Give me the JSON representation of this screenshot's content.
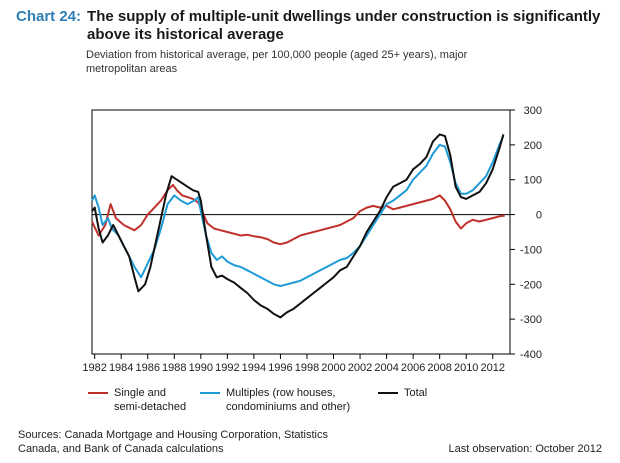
{
  "header": {
    "chart_number": "Chart 24:",
    "title": "The supply of multiple-unit dwellings under construction is significantly above its historical average",
    "subtitle": "Deviation from historical average, per 100,000 people (aged 25+ years), major metropolitan areas"
  },
  "colors": {
    "single": "#c0312b",
    "multiples": "#1f9bd7",
    "total": "#111111",
    "accent": "#2f7fb5"
  },
  "chart_data": {
    "type": "line",
    "x_ticks": [
      "1982",
      "1984",
      "1986",
      "1988",
      "1990",
      "1992",
      "1994",
      "1996",
      "1998",
      "2000",
      "2002",
      "2004",
      "2006",
      "2008",
      "2010",
      "2012"
    ],
    "y_ticks": [
      300,
      200,
      100,
      0,
      -100,
      -200,
      -300,
      -400
    ],
    "xlim": [
      1981.8,
      2013.3
    ],
    "ylim": [
      -400,
      300
    ],
    "y_axis_side": "right",
    "zero_line": true,
    "series": [
      {
        "name": "Single and semi-detached",
        "color": "#c0312b",
        "points": [
          [
            1981.8,
            -20
          ],
          [
            1982.3,
            -60
          ],
          [
            1982.8,
            -30
          ],
          [
            1983.2,
            30
          ],
          [
            1983.6,
            -10
          ],
          [
            1984.2,
            -30
          ],
          [
            1985.0,
            -45
          ],
          [
            1985.5,
            -30
          ],
          [
            1986.0,
            0
          ],
          [
            1986.5,
            20
          ],
          [
            1987.0,
            40
          ],
          [
            1987.5,
            70
          ],
          [
            1987.9,
            85
          ],
          [
            1988.2,
            70
          ],
          [
            1988.6,
            55
          ],
          [
            1989.0,
            50
          ],
          [
            1989.4,
            45
          ],
          [
            1989.8,
            35
          ],
          [
            1990.1,
            10
          ],
          [
            1990.5,
            -25
          ],
          [
            1991.0,
            -40
          ],
          [
            1991.5,
            -45
          ],
          [
            1992.0,
            -50
          ],
          [
            1992.5,
            -55
          ],
          [
            1993.0,
            -60
          ],
          [
            1993.5,
            -58
          ],
          [
            1994.0,
            -62
          ],
          [
            1994.5,
            -65
          ],
          [
            1995.0,
            -70
          ],
          [
            1995.5,
            -80
          ],
          [
            1996.0,
            -85
          ],
          [
            1996.5,
            -80
          ],
          [
            1997.0,
            -70
          ],
          [
            1997.5,
            -60
          ],
          [
            1998.0,
            -55
          ],
          [
            1998.5,
            -50
          ],
          [
            1999.0,
            -45
          ],
          [
            1999.5,
            -40
          ],
          [
            2000.0,
            -35
          ],
          [
            2000.5,
            -30
          ],
          [
            2001.0,
            -20
          ],
          [
            2001.5,
            -10
          ],
          [
            2002.0,
            10
          ],
          [
            2002.5,
            20
          ],
          [
            2003.0,
            25
          ],
          [
            2003.5,
            20
          ],
          [
            2004.0,
            25
          ],
          [
            2004.5,
            15
          ],
          [
            2005.0,
            20
          ],
          [
            2005.5,
            25
          ],
          [
            2006.0,
            30
          ],
          [
            2006.5,
            35
          ],
          [
            2007.0,
            40
          ],
          [
            2007.5,
            45
          ],
          [
            2008.0,
            55
          ],
          [
            2008.4,
            40
          ],
          [
            2008.8,
            15
          ],
          [
            2009.2,
            -20
          ],
          [
            2009.6,
            -40
          ],
          [
            2010.0,
            -25
          ],
          [
            2010.5,
            -15
          ],
          [
            2011.0,
            -20
          ],
          [
            2011.5,
            -15
          ],
          [
            2012.0,
            -10
          ],
          [
            2012.5,
            -5
          ],
          [
            2012.9,
            -3
          ]
        ]
      },
      {
        "name": "Multiples (row houses, condominiums and other)",
        "color": "#1f9bd7",
        "points": [
          [
            1981.8,
            40
          ],
          [
            1982.0,
            55
          ],
          [
            1982.3,
            20
          ],
          [
            1982.6,
            -30
          ],
          [
            1983.0,
            -10
          ],
          [
            1983.3,
            -40
          ],
          [
            1983.8,
            -60
          ],
          [
            1984.2,
            -90
          ],
          [
            1984.6,
            -120
          ],
          [
            1985.0,
            -150
          ],
          [
            1985.5,
            -180
          ],
          [
            1986.0,
            -140
          ],
          [
            1986.5,
            -100
          ],
          [
            1987.0,
            -40
          ],
          [
            1987.5,
            30
          ],
          [
            1988.0,
            55
          ],
          [
            1988.5,
            40
          ],
          [
            1989.0,
            30
          ],
          [
            1989.5,
            40
          ],
          [
            1989.8,
            50
          ],
          [
            1990.0,
            10
          ],
          [
            1990.4,
            -60
          ],
          [
            1990.8,
            -110
          ],
          [
            1991.2,
            -130
          ],
          [
            1991.6,
            -120
          ],
          [
            1992.0,
            -135
          ],
          [
            1992.5,
            -145
          ],
          [
            1993.0,
            -150
          ],
          [
            1993.5,
            -160
          ],
          [
            1994.0,
            -170
          ],
          [
            1994.5,
            -180
          ],
          [
            1995.0,
            -190
          ],
          [
            1995.5,
            -200
          ],
          [
            1996.0,
            -205
          ],
          [
            1996.5,
            -200
          ],
          [
            1997.0,
            -195
          ],
          [
            1997.5,
            -190
          ],
          [
            1998.0,
            -180
          ],
          [
            1998.5,
            -170
          ],
          [
            1999.0,
            -160
          ],
          [
            1999.5,
            -150
          ],
          [
            2000.0,
            -140
          ],
          [
            2000.5,
            -130
          ],
          [
            2001.0,
            -125
          ],
          [
            2001.5,
            -110
          ],
          [
            2002.0,
            -90
          ],
          [
            2002.5,
            -60
          ],
          [
            2003.0,
            -30
          ],
          [
            2003.5,
            0
          ],
          [
            2004.0,
            30
          ],
          [
            2004.5,
            40
          ],
          [
            2005.0,
            55
          ],
          [
            2005.5,
            70
          ],
          [
            2006.0,
            100
          ],
          [
            2006.5,
            120
          ],
          [
            2007.0,
            140
          ],
          [
            2007.5,
            175
          ],
          [
            2008.0,
            200
          ],
          [
            2008.4,
            195
          ],
          [
            2008.8,
            150
          ],
          [
            2009.2,
            90
          ],
          [
            2009.6,
            60
          ],
          [
            2010.0,
            60
          ],
          [
            2010.5,
            70
          ],
          [
            2011.0,
            90
          ],
          [
            2011.5,
            110
          ],
          [
            2012.0,
            150
          ],
          [
            2012.5,
            200
          ],
          [
            2012.8,
            225
          ]
        ]
      },
      {
        "name": "Total",
        "color": "#111111",
        "points": [
          [
            1981.8,
            10
          ],
          [
            1982.0,
            20
          ],
          [
            1982.3,
            -40
          ],
          [
            1982.6,
            -80
          ],
          [
            1983.0,
            -60
          ],
          [
            1983.4,
            -30
          ],
          [
            1983.8,
            -60
          ],
          [
            1984.2,
            -90
          ],
          [
            1984.6,
            -120
          ],
          [
            1985.0,
            -180
          ],
          [
            1985.3,
            -220
          ],
          [
            1985.8,
            -200
          ],
          [
            1986.2,
            -150
          ],
          [
            1986.6,
            -80
          ],
          [
            1987.0,
            -10
          ],
          [
            1987.4,
            60
          ],
          [
            1987.8,
            110
          ],
          [
            1988.2,
            100
          ],
          [
            1988.6,
            90
          ],
          [
            1989.0,
            80
          ],
          [
            1989.4,
            70
          ],
          [
            1989.8,
            65
          ],
          [
            1990.0,
            40
          ],
          [
            1990.4,
            -60
          ],
          [
            1990.8,
            -150
          ],
          [
            1991.2,
            -180
          ],
          [
            1991.6,
            -175
          ],
          [
            1992.0,
            -185
          ],
          [
            1992.5,
            -195
          ],
          [
            1993.0,
            -210
          ],
          [
            1993.5,
            -225
          ],
          [
            1994.0,
            -245
          ],
          [
            1994.5,
            -260
          ],
          [
            1995.0,
            -270
          ],
          [
            1995.5,
            -285
          ],
          [
            1996.0,
            -295
          ],
          [
            1996.5,
            -280
          ],
          [
            1997.0,
            -270
          ],
          [
            1997.5,
            -255
          ],
          [
            1998.0,
            -240
          ],
          [
            1998.5,
            -225
          ],
          [
            1999.0,
            -210
          ],
          [
            1999.5,
            -195
          ],
          [
            2000.0,
            -180
          ],
          [
            2000.5,
            -160
          ],
          [
            2001.0,
            -150
          ],
          [
            2001.5,
            -120
          ],
          [
            2002.0,
            -90
          ],
          [
            2002.5,
            -50
          ],
          [
            2003.0,
            -20
          ],
          [
            2003.5,
            10
          ],
          [
            2004.0,
            50
          ],
          [
            2004.5,
            80
          ],
          [
            2005.0,
            90
          ],
          [
            2005.5,
            100
          ],
          [
            2006.0,
            130
          ],
          [
            2006.5,
            145
          ],
          [
            2007.0,
            165
          ],
          [
            2007.5,
            210
          ],
          [
            2008.0,
            230
          ],
          [
            2008.4,
            225
          ],
          [
            2008.8,
            170
          ],
          [
            2009.2,
            80
          ],
          [
            2009.6,
            50
          ],
          [
            2010.0,
            45
          ],
          [
            2010.5,
            55
          ],
          [
            2011.0,
            65
          ],
          [
            2011.5,
            90
          ],
          [
            2012.0,
            130
          ],
          [
            2012.5,
            190
          ],
          [
            2012.8,
            230
          ]
        ]
      }
    ]
  },
  "legend": {
    "single": [
      "Single and",
      "semi-detached"
    ],
    "multiples": [
      "Multiples (row houses,",
      "condominiums and other)"
    ],
    "total": "Total"
  },
  "footer": {
    "sources": "Sources: Canada Mortgage and Housing Corporation, Statistics Canada, and Bank of Canada calculations",
    "last_observation": "Last observation: October 2012"
  }
}
